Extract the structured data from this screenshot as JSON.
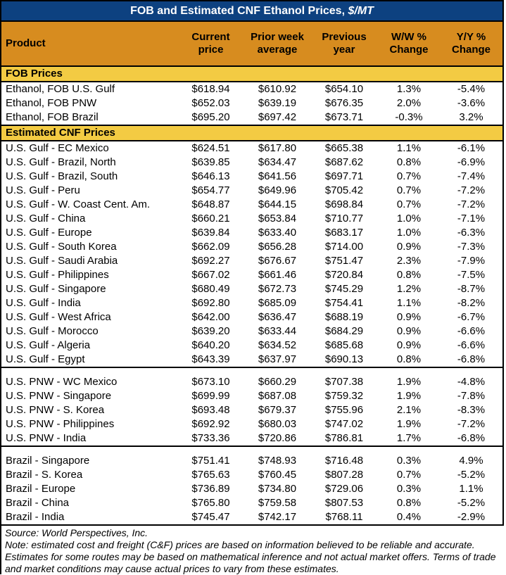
{
  "title": {
    "main": "FOB and Estimated CNF Ethanol Prices, ",
    "unit": "$/MT"
  },
  "table": {
    "columns": [
      "Product",
      "Current price",
      "Prior week average",
      "Previous year",
      "W/W % Change",
      "Y/Y % Change"
    ],
    "sections": [
      {
        "header": "FOB Prices",
        "groups": [
          {
            "rows": [
              [
                "Ethanol, FOB U.S. Gulf",
                "$618.94",
                "$610.92",
                "$654.10",
                "1.3%",
                "-5.4%"
              ],
              [
                "Ethanol, FOB PNW",
                "$652.03",
                "$639.19",
                "$676.35",
                "2.0%",
                "-3.6%"
              ],
              [
                "Ethanol, FOB Brazil",
                "$695.20",
                "$697.42",
                "$673.71",
                "-0.3%",
                "3.2%"
              ]
            ]
          }
        ]
      },
      {
        "header": "Estimated CNF Prices",
        "groups": [
          {
            "rows": [
              [
                "U.S. Gulf - EC Mexico",
                "$624.51",
                "$617.80",
                "$665.38",
                "1.1%",
                "-6.1%"
              ],
              [
                "U.S. Gulf - Brazil, North",
                "$639.85",
                "$634.47",
                "$687.62",
                "0.8%",
                "-6.9%"
              ],
              [
                "U.S. Gulf - Brazil, South",
                "$646.13",
                "$641.56",
                "$697.71",
                "0.7%",
                "-7.4%"
              ],
              [
                "U.S. Gulf - Peru",
                "$654.77",
                "$649.96",
                "$705.42",
                "0.7%",
                "-7.2%"
              ],
              [
                "U.S. Gulf - W. Coast Cent. Am.",
                "$648.87",
                "$644.15",
                "$698.84",
                "0.7%",
                "-7.2%"
              ],
              [
                "U.S. Gulf - China",
                "$660.21",
                "$653.84",
                "$710.77",
                "1.0%",
                "-7.1%"
              ],
              [
                "U.S. Gulf - Europe",
                "$639.84",
                "$633.40",
                "$683.17",
                "1.0%",
                "-6.3%"
              ],
              [
                "U.S. Gulf - South Korea",
                "$662.09",
                "$656.28",
                "$714.00",
                "0.9%",
                "-7.3%"
              ],
              [
                "U.S. Gulf - Saudi Arabia",
                "$692.27",
                "$676.67",
                "$751.47",
                "2.3%",
                "-7.9%"
              ],
              [
                "U.S. Gulf - Philippines",
                "$667.02",
                "$661.46",
                "$720.84",
                "0.8%",
                "-7.5%"
              ],
              [
                "U.S. Gulf - Singapore",
                "$680.49",
                "$672.73",
                "$745.29",
                "1.2%",
                "-8.7%"
              ],
              [
                "U.S. Gulf - India",
                "$692.80",
                "$685.09",
                "$754.41",
                "1.1%",
                "-8.2%"
              ],
              [
                "U.S. Gulf - West Africa",
                "$642.00",
                "$636.47",
                "$688.19",
                "0.9%",
                "-6.7%"
              ],
              [
                "U.S. Gulf - Morocco",
                "$639.20",
                "$633.44",
                "$684.29",
                "0.9%",
                "-6.6%"
              ],
              [
                "U.S. Gulf - Algeria",
                "$640.20",
                "$634.52",
                "$685.68",
                "0.9%",
                "-6.6%"
              ],
              [
                "U.S. Gulf - Egypt",
                "$643.39",
                "$637.97",
                "$690.13",
                "0.8%",
                "-6.8%"
              ]
            ]
          },
          {
            "rows": [
              [
                "U.S. PNW - WC Mexico",
                "$673.10",
                "$660.29",
                "$707.38",
                "1.9%",
                "-4.8%"
              ],
              [
                "U.S. PNW - Singapore",
                "$699.99",
                "$687.08",
                "$759.32",
                "1.9%",
                "-7.8%"
              ],
              [
                "U.S. PNW - S. Korea",
                "$693.48",
                "$679.37",
                "$755.96",
                "2.1%",
                "-8.3%"
              ],
              [
                "U.S. PNW - Philippines",
                "$692.92",
                "$680.03",
                "$747.02",
                "1.9%",
                "-7.2%"
              ],
              [
                "U.S. PNW - India",
                "$733.36",
                "$720.86",
                "$786.81",
                "1.7%",
                "-6.8%"
              ]
            ]
          },
          {
            "rows": [
              [
                "Brazil - Singapore",
                "$751.41",
                "$748.93",
                "$716.48",
                "0.3%",
                "4.9%"
              ],
              [
                "Brazil - S. Korea",
                "$765.63",
                "$760.45",
                "$807.28",
                "0.7%",
                "-5.2%"
              ],
              [
                "Brazil - Europe",
                "$736.89",
                "$734.80",
                "$729.06",
                "0.3%",
                "1.1%"
              ],
              [
                "Brazil - China",
                "$765.80",
                "$759.58",
                "$807.53",
                "0.8%",
                "-5.2%"
              ],
              [
                "Brazil - India",
                "$745.47",
                "$742.17",
                "$768.11",
                "0.4%",
                "-2.9%"
              ]
            ]
          }
        ]
      }
    ]
  },
  "footer": {
    "source": "Source: World Perspectives, Inc.",
    "note": "Note: estimated cost and freight (C&F) prices are based on information believed to be reliable and accurate. Estimates for some routes may be based on mathematical inference and not actual market offers. Terms of trade and market conditions may cause actual prices to vary from these estimates."
  },
  "colors": {
    "title_bg": "#0D4180",
    "header_bg": "#D78C1F",
    "section_bg": "#F3CB43",
    "border": "#000000",
    "title_text": "#FFFFFF",
    "body_text": "#000000"
  }
}
